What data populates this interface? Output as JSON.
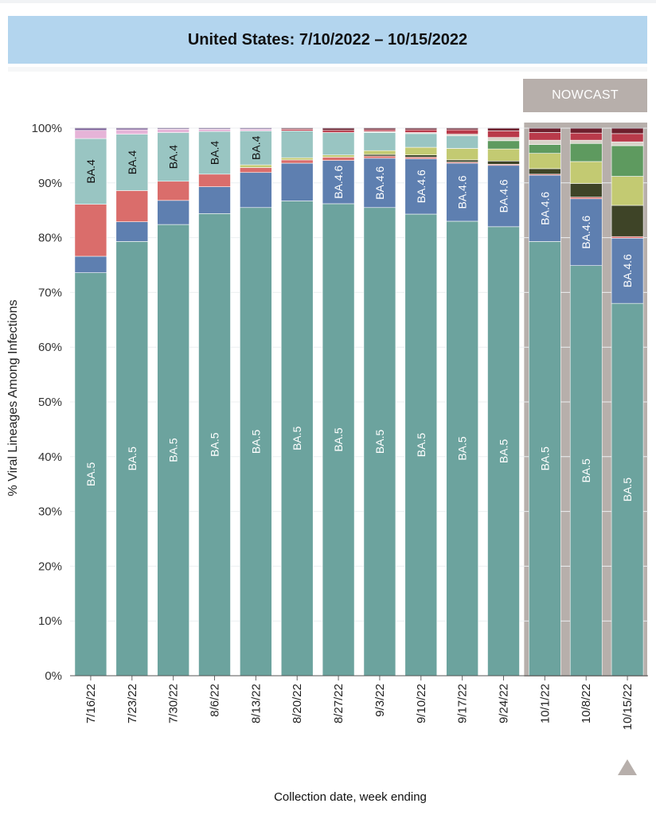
{
  "header": {
    "title": "United States: 7/10/2022 – 10/15/2022"
  },
  "nowcast_label": "NOWCAST",
  "controls": {
    "scroll_icon": "triangle-up-icon"
  },
  "colors": {
    "BA.5": "#6ca39e",
    "BA.4.6": "#5e7fb0",
    "BA.2.12.1": "#da6d6b",
    "BA.4": "#99c5c2",
    "BA.2": "#e6b4d8",
    "olive-light": "#c3ca72",
    "olive-dark": "#3e4427",
    "green": "#5e9a5f",
    "red": "#b93a4a",
    "dark-red": "#6e1f2c",
    "grey": "#d8d2c8",
    "purple": "#7a5a97",
    "nowcast_bg": "#b7afab",
    "title_bg": "#b3d5ee"
  },
  "chart_data": {
    "type": "bar",
    "stacked": true,
    "title": "United States: 7/10/2022 – 10/15/2022",
    "xlabel": "Collection date, week ending",
    "ylabel": "% Viral Lineages Among Infections",
    "ylim": [
      0,
      100
    ],
    "yticks": [
      "0%",
      "10%",
      "20%",
      "30%",
      "40%",
      "50%",
      "60%",
      "70%",
      "80%",
      "90%",
      "100%"
    ],
    "categories": [
      "7/16/22",
      "7/23/22",
      "7/30/22",
      "8/6/22",
      "8/13/22",
      "8/20/22",
      "8/27/22",
      "9/3/22",
      "9/10/22",
      "9/17/22",
      "9/24/22",
      "10/1/22",
      "10/8/22",
      "10/15/22"
    ],
    "nowcast_categories": [
      "10/1/22",
      "10/8/22",
      "10/15/22"
    ],
    "segment_labels": [
      [
        "BA.5",
        "",
        "",
        "BA.4",
        "",
        ""
      ],
      [
        "BA.5",
        "",
        "",
        "BA.4",
        "",
        ""
      ],
      [
        "BA.5",
        "",
        "",
        "BA.4",
        "",
        ""
      ],
      [
        "BA.5",
        "",
        "",
        "BA.4",
        "",
        ""
      ],
      [
        "BA.5",
        "",
        "",
        "",
        "BA.4",
        "",
        ""
      ],
      [
        "BA.5",
        "",
        "",
        "",
        "",
        "",
        ""
      ],
      [
        "BA.5",
        "BA.4.6",
        "",
        "",
        "",
        "",
        ""
      ],
      [
        "BA.5",
        "BA.4.6",
        "",
        "",
        "",
        "",
        "",
        "",
        ""
      ],
      [
        "BA.5",
        "BA.4.6",
        "",
        "",
        "",
        "",
        "",
        "",
        ""
      ],
      [
        "BA.5",
        "BA.4.6",
        "",
        "",
        "",
        "",
        "",
        "",
        ""
      ],
      [
        "BA.5",
        "BA.4.6",
        "",
        "",
        "",
        "",
        "",
        "",
        ""
      ],
      [
        "BA.5",
        "BA.4.6",
        "",
        "",
        "",
        "",
        "",
        "",
        ""
      ],
      [
        "BA.5",
        "BA.4.6",
        "",
        "",
        "",
        "",
        "",
        "",
        ""
      ],
      [
        "BA.5",
        "BA.4.6",
        "",
        "",
        "",
        "",
        "",
        "",
        ""
      ]
    ],
    "segment_colors": [
      [
        "#6ca39e",
        "#5e7fb0",
        "#da6d6b",
        "#99c5c2",
        "#e6b4d8",
        "#7a5a97"
      ],
      [
        "#6ca39e",
        "#5e7fb0",
        "#da6d6b",
        "#99c5c2",
        "#e6b4d8",
        "#7a5a97"
      ],
      [
        "#6ca39e",
        "#5e7fb0",
        "#da6d6b",
        "#99c5c2",
        "#e6b4d8",
        "#7a5a97"
      ],
      [
        "#6ca39e",
        "#5e7fb0",
        "#da6d6b",
        "#99c5c2",
        "#e6b4d8",
        "#7a5a97"
      ],
      [
        "#6ca39e",
        "#5e7fb0",
        "#da6d6b",
        "#c3ca72",
        "#99c5c2",
        "#e6b4d8",
        "#7a5a97"
      ],
      [
        "#6ca39e",
        "#5e7fb0",
        "#da6d6b",
        "#c3ca72",
        "#99c5c2",
        "#b93a4a",
        "#6e1f2c"
      ],
      [
        "#6ca39e",
        "#5e7fb0",
        "#da6d6b",
        "#c3ca72",
        "#99c5c2",
        "#b93a4a",
        "#6e1f2c"
      ],
      [
        "#6ca39e",
        "#5e7fb0",
        "#da6d6b",
        "#3e4427",
        "#c3ca72",
        "#99c5c2",
        "#d8d2c8",
        "#b93a4a",
        "#6e1f2c"
      ],
      [
        "#6ca39e",
        "#5e7fb0",
        "#da6d6b",
        "#3e4427",
        "#c3ca72",
        "#99c5c2",
        "#d8d2c8",
        "#b93a4a",
        "#6e1f2c"
      ],
      [
        "#6ca39e",
        "#5e7fb0",
        "#da6d6b",
        "#3e4427",
        "#c3ca72",
        "#99c5c2",
        "#d8d2c8",
        "#b93a4a",
        "#6e1f2c"
      ],
      [
        "#6ca39e",
        "#5e7fb0",
        "#da6d6b",
        "#3e4427",
        "#c3ca72",
        "#5e9a5f",
        "#d8d2c8",
        "#b93a4a",
        "#6e1f2c"
      ],
      [
        "#6ca39e",
        "#5e7fb0",
        "#da6d6b",
        "#3e4427",
        "#c3ca72",
        "#5e9a5f",
        "#d8d2c8",
        "#b93a4a",
        "#6e1f2c"
      ],
      [
        "#6ca39e",
        "#5e7fb0",
        "#da6d6b",
        "#3e4427",
        "#c3ca72",
        "#5e9a5f",
        "#d8d2c8",
        "#b93a4a",
        "#6e1f2c"
      ],
      [
        "#6ca39e",
        "#5e7fb0",
        "#da6d6b",
        "#3e4427",
        "#c3ca72",
        "#5e9a5f",
        "#d8d2c8",
        "#b93a4a",
        "#6e1f2c"
      ]
    ],
    "segment_values": [
      [
        73.6,
        3.0,
        9.5,
        12.0,
        1.5,
        0.4
      ],
      [
        79.3,
        3.6,
        5.7,
        10.3,
        0.8,
        0.3
      ],
      [
        82.4,
        4.4,
        3.5,
        8.9,
        0.6,
        0.2
      ],
      [
        84.4,
        4.9,
        2.3,
        7.8,
        0.4,
        0.2
      ],
      [
        85.5,
        6.4,
        0.9,
        0.5,
        6.2,
        0.3,
        0.2
      ],
      [
        86.7,
        6.9,
        0.6,
        0.4,
        4.9,
        0.3,
        0.2
      ],
      [
        86.2,
        7.9,
        0.6,
        0.4,
        4.1,
        0.4,
        0.4
      ],
      [
        85.5,
        9.0,
        0.4,
        0.3,
        0.7,
        3.3,
        0.2,
        0.3,
        0.3
      ],
      [
        84.3,
        10.1,
        0.3,
        0.4,
        1.4,
        2.5,
        0.2,
        0.5,
        0.3
      ],
      [
        83.0,
        10.6,
        0.2,
        0.4,
        2.1,
        2.3,
        0.3,
        0.8,
        0.3
      ],
      [
        82.0,
        11.2,
        0.2,
        0.6,
        2.2,
        1.5,
        0.6,
        1.2,
        0.5
      ],
      [
        79.3,
        12.1,
        0.2,
        1.0,
        2.8,
        1.6,
        0.8,
        1.4,
        0.8
      ],
      [
        74.9,
        12.2,
        0.3,
        2.5,
        4.0,
        3.3,
        0.6,
        1.3,
        0.9
      ],
      [
        68.0,
        11.9,
        0.3,
        5.7,
        5.3,
        5.6,
        0.7,
        1.5,
        1.0
      ]
    ]
  }
}
